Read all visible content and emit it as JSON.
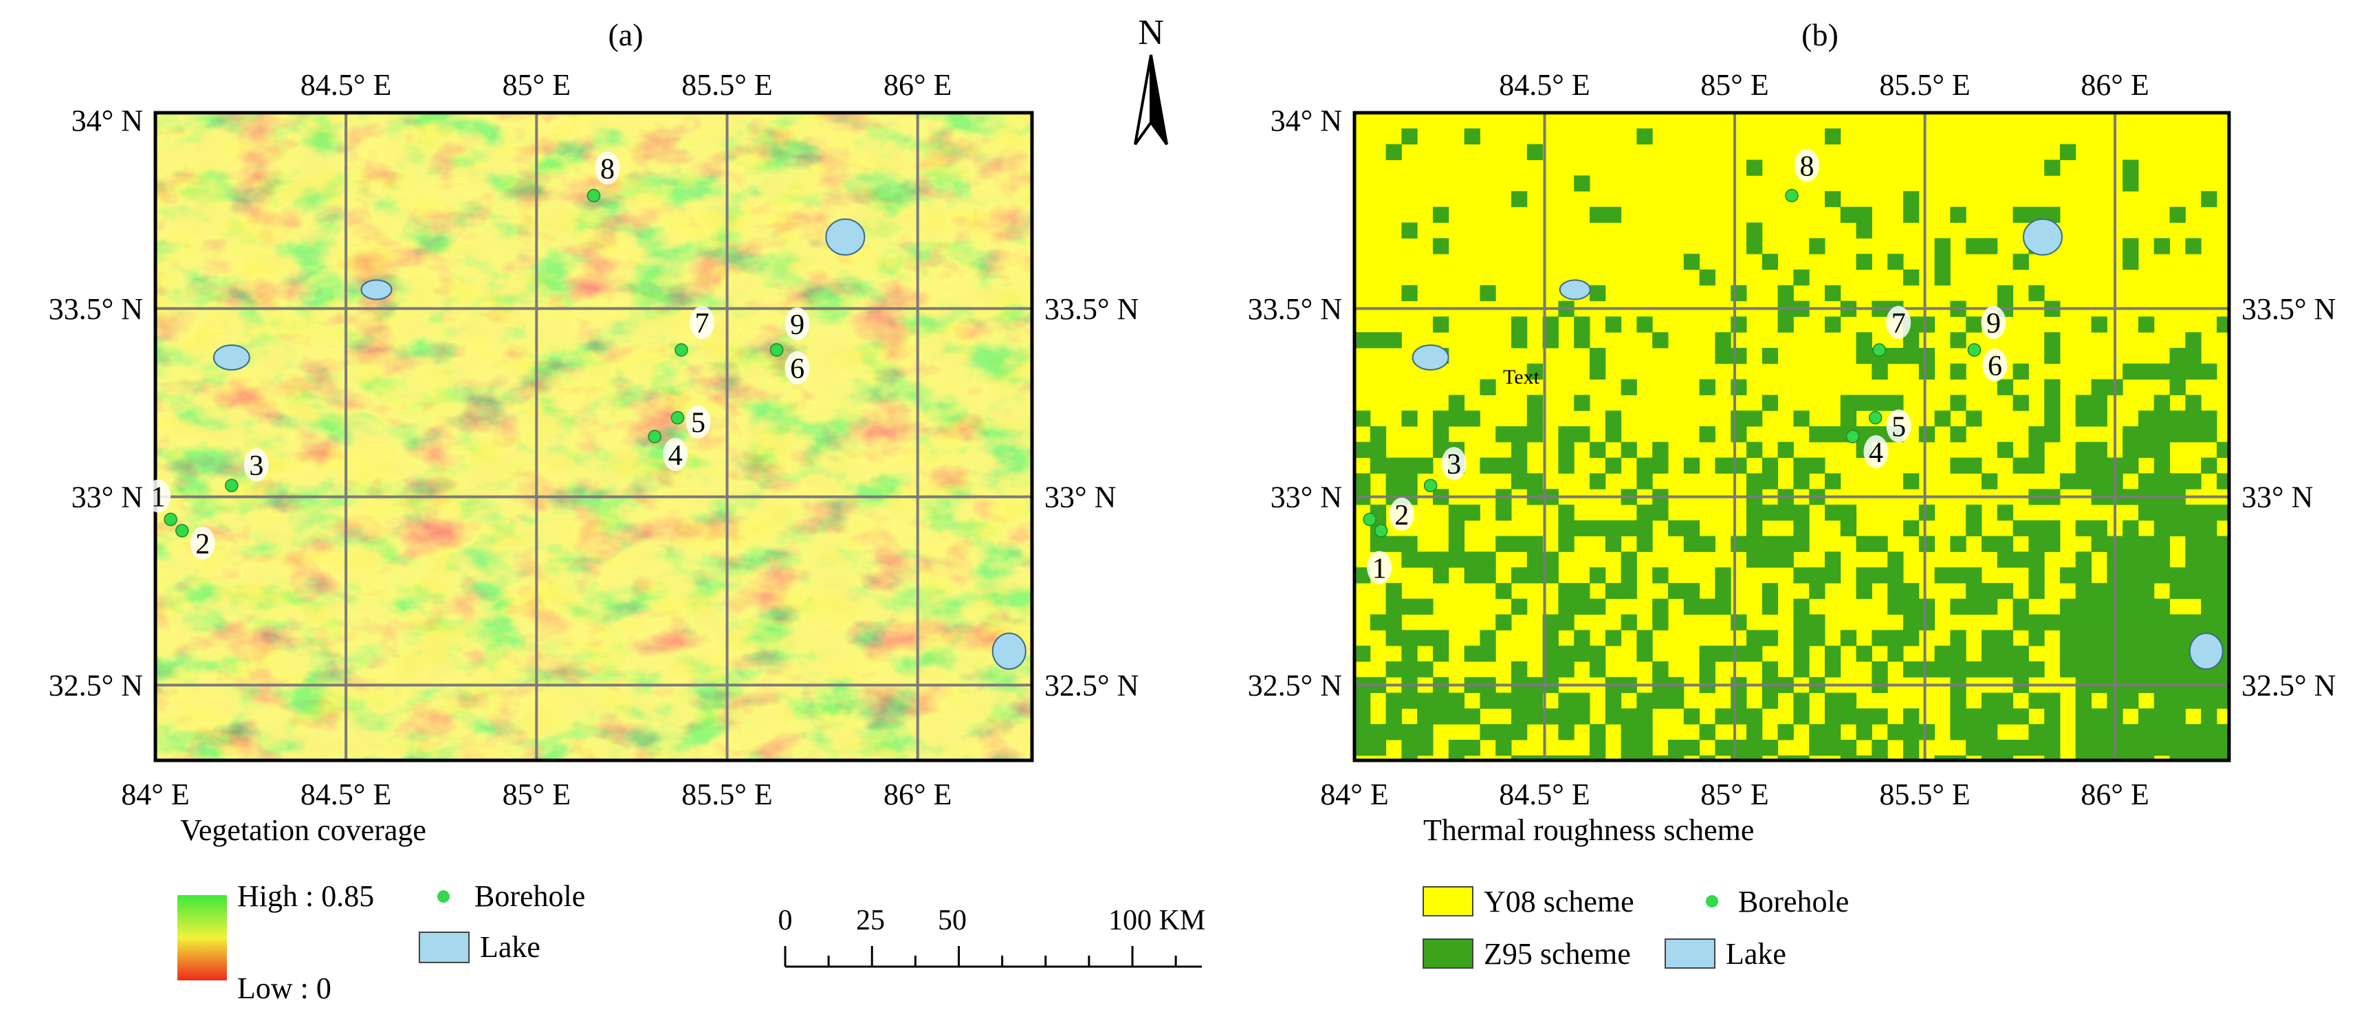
{
  "panel_a": {
    "title": "(a)",
    "lon_labels": [
      "84° E",
      "84.5° E",
      "85° E",
      "85.5° E",
      "86° E"
    ],
    "lat_labels": [
      "34° N",
      "33.5° N",
      "33° N",
      "32.5° N"
    ],
    "lon_values": [
      84.0,
      84.5,
      85.0,
      85.5,
      86.0
    ],
    "lat_values": [
      34.0,
      33.5,
      33.0,
      32.5
    ],
    "legend_title": "Vegetation coverage",
    "legend_high": "High : 0.85",
    "legend_low": "Low : 0",
    "legend_borehole": "Borehole",
    "legend_lake": "Lake"
  },
  "panel_b": {
    "title": "(b)",
    "lon_labels": [
      "84° E",
      "84.5° E",
      "85° E",
      "85.5° E",
      "86° E"
    ],
    "lat_labels": [
      "34° N",
      "33.5° N",
      "33° N",
      "32.5° N"
    ],
    "lon_values": [
      84.0,
      84.5,
      85.0,
      85.5,
      86.0
    ],
    "lat_values": [
      34.0,
      33.5,
      33.0,
      32.5
    ],
    "stray_text": "Text",
    "legend_title": "Thermal roughness scheme",
    "legend_y08": "Y08 scheme",
    "legend_z95": "Z95 scheme",
    "legend_borehole": "Borehole",
    "legend_lake": "Lake"
  },
  "north_arrow": "N",
  "scale_bar": {
    "ticks": [
      "0",
      "25",
      "50",
      "100 KM"
    ],
    "values_km": [
      0,
      25,
      50,
      100
    ]
  },
  "boreholes": [
    {
      "id": "1",
      "lon": 84.04,
      "lat": 32.94
    },
    {
      "id": "2",
      "lon": 84.07,
      "lat": 32.91
    },
    {
      "id": "3",
      "lon": 84.2,
      "lat": 33.03
    },
    {
      "id": "4",
      "lon": 85.31,
      "lat": 33.16
    },
    {
      "id": "5",
      "lon": 85.37,
      "lat": 33.21
    },
    {
      "id": "6",
      "lon": 85.63,
      "lat": 33.39
    },
    {
      "id": "7",
      "lon": 85.38,
      "lat": 33.39
    },
    {
      "id": "8",
      "lon": 85.15,
      "lat": 33.8
    },
    {
      "id": "9",
      "lon": 85.63,
      "lat": 33.39
    }
  ],
  "lakes": [
    {
      "name": "lake-east",
      "lon": 85.81,
      "lat": 33.69
    },
    {
      "name": "lake-north",
      "lon": 84.58,
      "lat": 33.55
    },
    {
      "name": "lake-west",
      "lon": 84.2,
      "lat": 33.37
    },
    {
      "name": "lake-southeast",
      "lon": 86.24,
      "lat": 32.59
    }
  ],
  "colors": {
    "veg_high": "#3ee83a",
    "veg_mid": "#f2f23a",
    "veg_low": "#ee2a1a",
    "y08": "#ffff00",
    "z95": "#3ba41c",
    "borehole": "#33d94a",
    "lake": "#a6d8f0",
    "grid": "#7a7a7a"
  }
}
